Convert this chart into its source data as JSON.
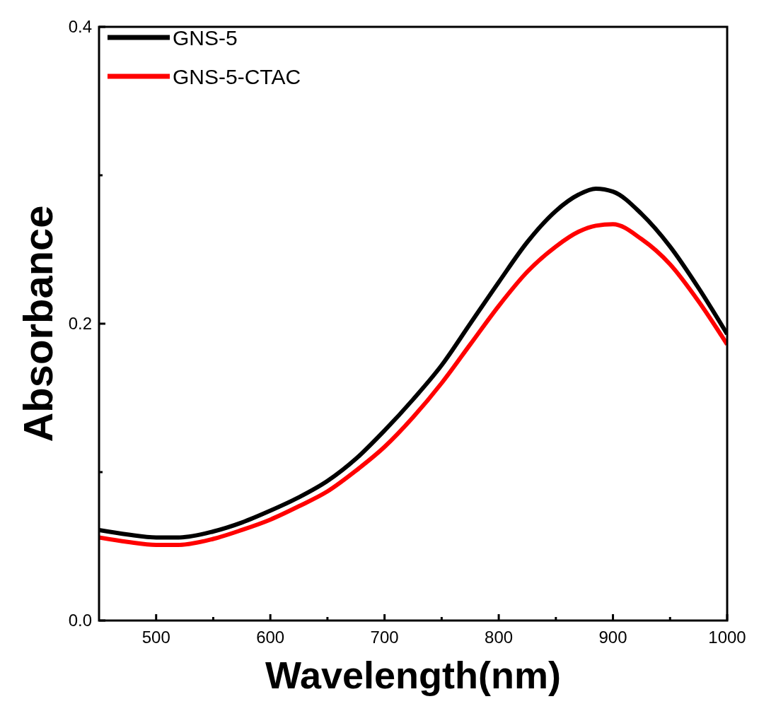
{
  "chart_data": {
    "type": "line",
    "xlabel": "Wavelength(nm)",
    "ylabel": "Absorbance",
    "x": [
      450,
      475,
      500,
      520,
      550,
      575,
      600,
      625,
      650,
      675,
      700,
      725,
      750,
      775,
      800,
      825,
      850,
      870,
      885,
      900,
      925,
      950,
      975,
      1000
    ],
    "series": [
      {
        "name": "GNS-5",
        "color": "#000000",
        "values": [
          0.061,
          0.058,
          0.056,
          0.056,
          0.06,
          0.066,
          0.074,
          0.083,
          0.094,
          0.109,
          0.128,
          0.149,
          0.172,
          0.2,
          0.228,
          0.255,
          0.276,
          0.287,
          0.291,
          0.289,
          0.274,
          0.252,
          0.224,
          0.193
        ]
      },
      {
        "name": "GNS-5-CTAC",
        "color": "#ff0000",
        "values": [
          0.056,
          0.053,
          0.051,
          0.051,
          0.055,
          0.061,
          0.068,
          0.077,
          0.087,
          0.101,
          0.117,
          0.137,
          0.16,
          0.186,
          0.212,
          0.235,
          0.252,
          0.262,
          0.266,
          0.267,
          0.257,
          0.24,
          0.215,
          0.186
        ]
      }
    ],
    "xlim": [
      450,
      1000
    ],
    "ylim": [
      0,
      0.4
    ],
    "xticks": [
      500,
      {
        "value": 550,
        "label": null
      },
      600,
      {
        "value": 650,
        "label": null
      },
      700,
      {
        "value": 750,
        "label": null
      },
      800,
      {
        "value": 850,
        "label": null
      },
      900,
      {
        "value": 950,
        "label": null
      },
      1000
    ],
    "yticks": [
      {
        "value": 0,
        "label": "0.0"
      },
      {
        "value": 0.1,
        "label": null
      },
      0.2,
      {
        "value": 0.3,
        "label": null
      },
      0.4
    ],
    "legend": "top left",
    "grid": false,
    "line_style": "solid"
  }
}
